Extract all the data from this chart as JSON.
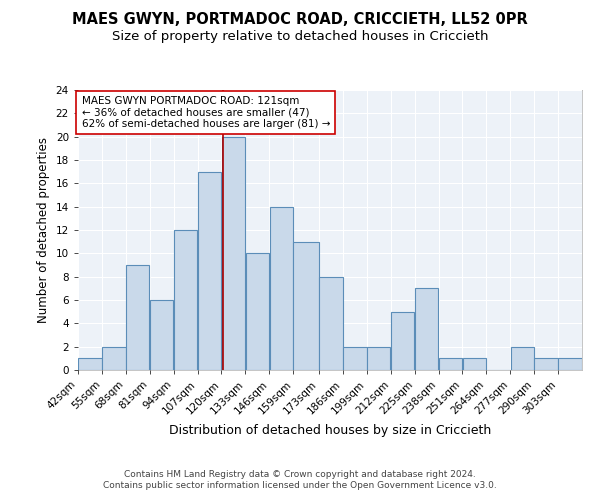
{
  "title1": "MAES GWYN, PORTMADOC ROAD, CRICCIETH, LL52 0PR",
  "title2": "Size of property relative to detached houses in Criccieth",
  "xlabel": "Distribution of detached houses by size in Criccieth",
  "ylabel": "Number of detached properties",
  "bin_labels": [
    "42sqm",
    "55sqm",
    "68sqm",
    "81sqm",
    "94sqm",
    "107sqm",
    "120sqm",
    "133sqm",
    "146sqm",
    "159sqm",
    "173sqm",
    "186sqm",
    "199sqm",
    "212sqm",
    "225sqm",
    "238sqm",
    "251sqm",
    "264sqm",
    "277sqm",
    "290sqm",
    "303sqm"
  ],
  "bin_edges": [
    42,
    55,
    68,
    81,
    94,
    107,
    120,
    133,
    146,
    159,
    173,
    186,
    199,
    212,
    225,
    238,
    251,
    264,
    277,
    290,
    303,
    316
  ],
  "counts": [
    1,
    2,
    9,
    6,
    12,
    17,
    20,
    10,
    14,
    11,
    8,
    2,
    2,
    5,
    7,
    1,
    1,
    0,
    2,
    1,
    1
  ],
  "bar_color": "#c9d9ea",
  "bar_edge_color": "#5b8db8",
  "property_sqm": 121,
  "vline_color": "#aa0000",
  "annotation_text": "MAES GWYN PORTMADOC ROAD: 121sqm\n← 36% of detached houses are smaller (47)\n62% of semi-detached houses are larger (81) →",
  "annotation_box_color": "white",
  "annotation_box_edge": "#cc0000",
  "ylim": [
    0,
    24
  ],
  "yticks": [
    0,
    2,
    4,
    6,
    8,
    10,
    12,
    14,
    16,
    18,
    20,
    22,
    24
  ],
  "background_color": "#edf2f8",
  "grid_color": "#ffffff",
  "footer_line1": "Contains HM Land Registry data © Crown copyright and database right 2024.",
  "footer_line2": "Contains public sector information licensed under the Open Government Licence v3.0.",
  "title1_fontsize": 10.5,
  "title2_fontsize": 9.5,
  "xlabel_fontsize": 9,
  "ylabel_fontsize": 8.5,
  "tick_fontsize": 7.5,
  "annot_fontsize": 7.5,
  "footer_fontsize": 6.5
}
